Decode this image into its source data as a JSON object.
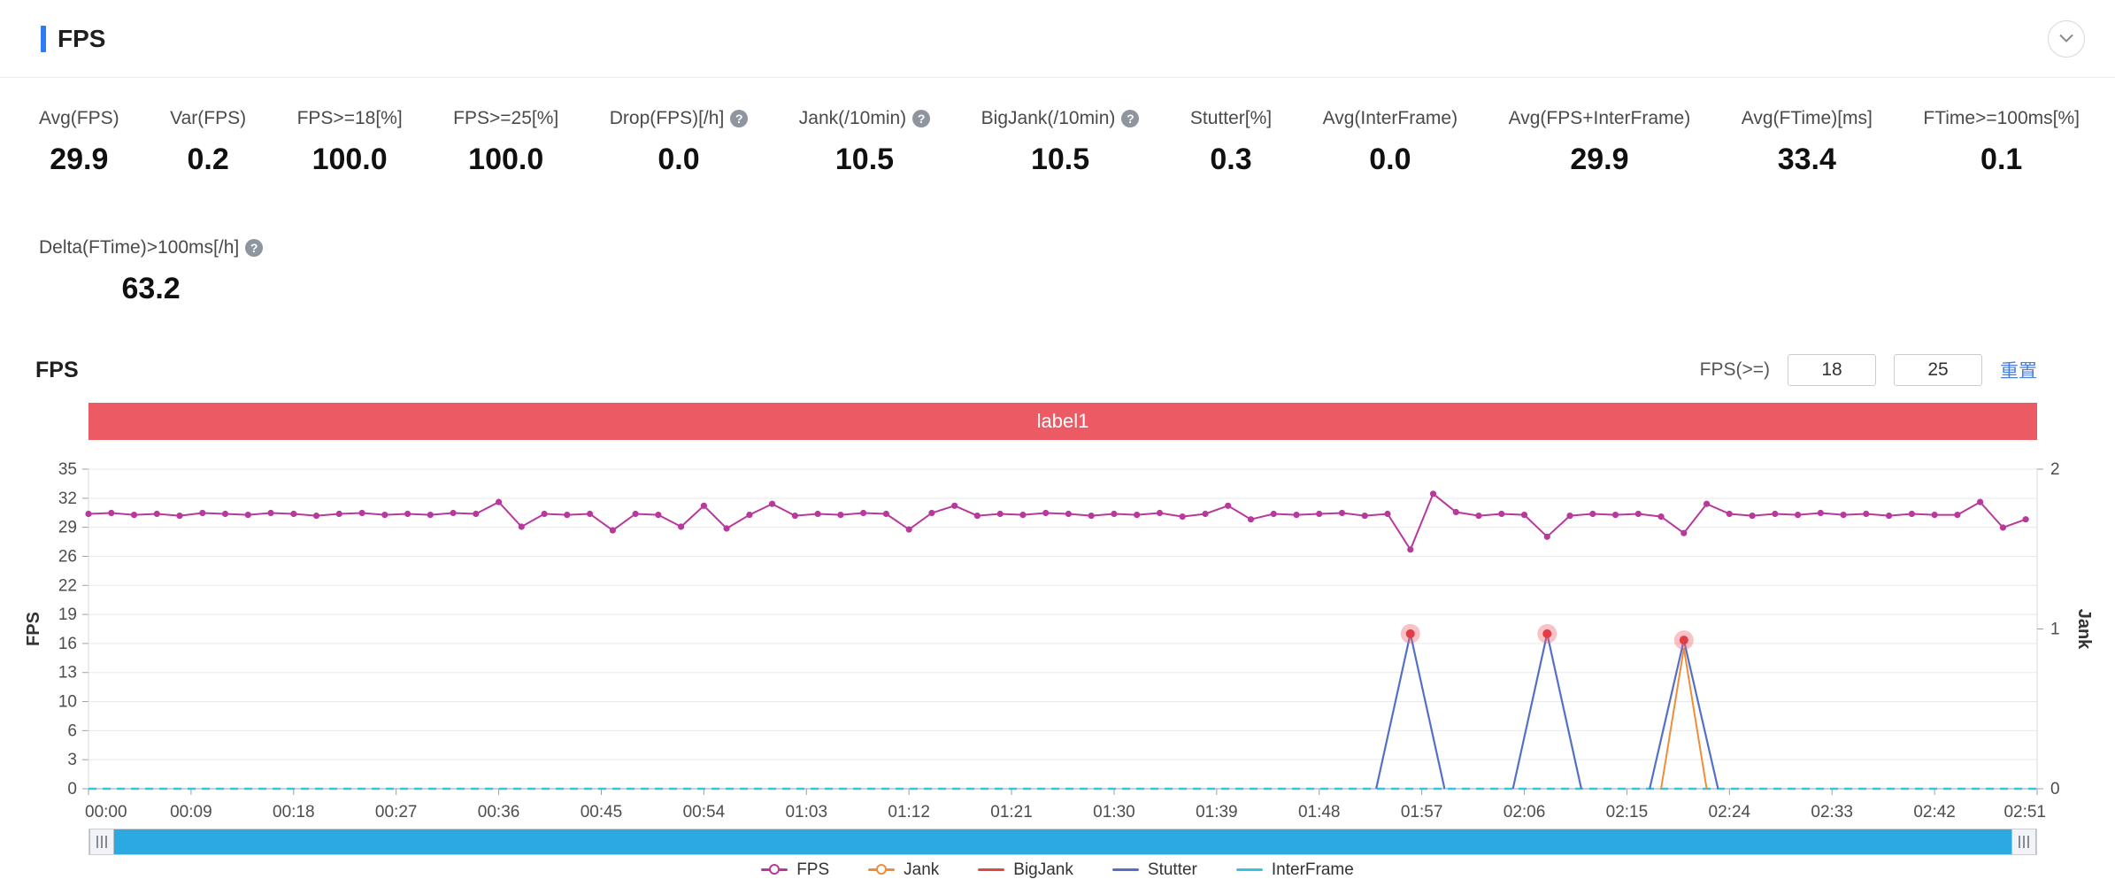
{
  "header": {
    "title": "FPS"
  },
  "stats": {
    "row1": [
      {
        "label": "Avg(FPS)",
        "value": "29.9",
        "help": false
      },
      {
        "label": "Var(FPS)",
        "value": "0.2",
        "help": false
      },
      {
        "label": "FPS>=18[%]",
        "value": "100.0",
        "help": false
      },
      {
        "label": "FPS>=25[%]",
        "value": "100.0",
        "help": false
      },
      {
        "label": "Drop(FPS)[/h]",
        "value": "0.0",
        "help": true
      },
      {
        "label": "Jank(/10min)",
        "value": "10.5",
        "help": true
      },
      {
        "label": "BigJank(/10min)",
        "value": "10.5",
        "help": true
      },
      {
        "label": "Stutter[%]",
        "value": "0.3",
        "help": false
      },
      {
        "label": "Avg(InterFrame)",
        "value": "0.0",
        "help": false
      },
      {
        "label": "Avg(FPS+InterFrame)",
        "value": "29.9",
        "help": false
      },
      {
        "label": "Avg(FTime)[ms]",
        "value": "33.4",
        "help": false
      },
      {
        "label": "FTime>=100ms[%]",
        "value": "0.1",
        "help": false
      }
    ],
    "row2": [
      {
        "label": "Delta(FTime)>100ms[/h]",
        "value": "63.2",
        "help": true
      }
    ]
  },
  "chart_section": {
    "title": "FPS",
    "fps_threshold_label": "FPS(>=)",
    "threshold_low": "18",
    "threshold_high": "25",
    "reset_label": "重置",
    "banner_label": "label1"
  },
  "chart_data": {
    "type": "line",
    "title": "FPS",
    "x_unit": "time (mm:ss)",
    "x_max": 171,
    "x_tick_interval_seconds": 9,
    "x_tick_labels": [
      "00:00",
      "00:09",
      "00:18",
      "00:27",
      "00:36",
      "00:45",
      "00:54",
      "01:03",
      "01:12",
      "01:21",
      "01:30",
      "01:39",
      "01:48",
      "01:57",
      "02:06",
      "02:15",
      "02:24",
      "02:33",
      "02:42",
      "02:51"
    ],
    "left_axis": {
      "label": "FPS",
      "min": 0,
      "max": 35,
      "tick_labels": [
        0,
        3,
        6,
        10,
        13,
        16,
        19,
        22,
        26,
        29,
        32,
        35
      ]
    },
    "right_axis": {
      "label": "Jank",
      "min": 0,
      "max": 2,
      "tick_labels": [
        0,
        1,
        2
      ]
    },
    "grid": "horizontal-only",
    "legend_position": "bottom",
    "series": [
      {
        "name": "FPS",
        "axis": "left",
        "color": "#b8399b",
        "x_start": 0,
        "x_step": 2,
        "values": [
          30.1,
          30.2,
          30.0,
          30.1,
          29.9,
          30.2,
          30.1,
          30.0,
          30.2,
          30.1,
          29.9,
          30.1,
          30.2,
          30.0,
          30.1,
          30.0,
          30.2,
          30.1,
          31.4,
          28.7,
          30.1,
          30.0,
          30.1,
          28.3,
          30.1,
          30.0,
          28.7,
          31.0,
          28.5,
          30.0,
          31.2,
          29.9,
          30.1,
          30.0,
          30.2,
          30.1,
          28.4,
          30.2,
          31.0,
          29.9,
          30.1,
          30.0,
          30.2,
          30.1,
          29.9,
          30.1,
          30.0,
          30.2,
          29.8,
          30.1,
          31.0,
          29.5,
          30.1,
          30.0,
          30.1,
          30.2,
          29.9,
          30.1,
          26.2,
          32.3,
          30.3,
          29.9,
          30.1,
          30.0,
          27.6,
          29.9,
          30.1,
          30.0,
          30.1,
          29.8,
          28.0,
          31.2,
          30.1,
          29.9,
          30.1,
          30.0,
          30.2,
          30.0,
          30.1,
          29.9,
          30.1,
          30.0,
          30.0,
          31.4,
          28.6,
          29.5
        ]
      },
      {
        "name": "Jank",
        "axis": "right",
        "color": "#f08c3a",
        "spikes": [
          {
            "x": 140,
            "peak": 0.88,
            "base": 2
          }
        ]
      },
      {
        "name": "BigJank",
        "axis": "right",
        "color": "#e04848",
        "markers": [
          {
            "x": 116,
            "y": 0.97
          },
          {
            "x": 128,
            "y": 0.97
          },
          {
            "x": 140,
            "y": 0.93
          }
        ]
      },
      {
        "name": "Stutter",
        "axis": "right",
        "color": "#5470c6",
        "spikes": [
          {
            "x": 116,
            "peak": 0.97,
            "base": 3
          },
          {
            "x": 128,
            "peak": 0.97,
            "base": 3
          },
          {
            "x": 140,
            "peak": 0.93,
            "base": 3
          }
        ]
      },
      {
        "name": "InterFrame",
        "axis": "left",
        "color": "#3bc2e0",
        "constant": 0,
        "dashed": true
      }
    ]
  },
  "legend": [
    {
      "label": "FPS",
      "color": "#b8399b",
      "dot": true
    },
    {
      "label": "Jank",
      "color": "#f08c3a",
      "dot": true
    },
    {
      "label": "BigJank",
      "color": "#e04848",
      "dot": false
    },
    {
      "label": "Stutter",
      "color": "#5470c6",
      "dot": false
    },
    {
      "label": "InterFrame",
      "color": "#3bc2e0",
      "dot": false
    }
  ],
  "colors": {
    "accent_blue": "#2e7bf3",
    "banner_red": "#ec5b64",
    "link_blue": "#4a7fe0",
    "scrollbar_blue": "#2ba9e1",
    "marker_halo": "rgba(240,95,105,0.38)",
    "marker_dot": "#e23c44"
  }
}
